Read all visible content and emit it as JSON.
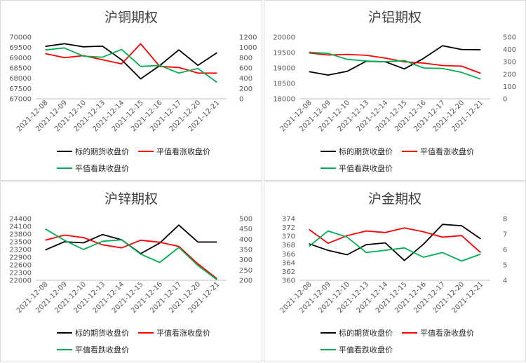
{
  "colors": {
    "futures": "#000000",
    "call": "#ff0000",
    "put": "#00b050",
    "axis": "#bfbfbf",
    "grid": "#e6e6e6"
  },
  "chart_data": [
    {
      "type": "line",
      "title": "沪铜期权",
      "categories": [
        "2021-12-08",
        "2021-12-09",
        "2021-12-10",
        "2021-12-13",
        "2021-12-14",
        "2021-12-15",
        "2021-12-16",
        "2021-12-17",
        "2021-12-20",
        "2021-12-21"
      ],
      "yleft": {
        "range": [
          67000,
          70000
        ],
        "ticks": [
          67000,
          67500,
          68000,
          68500,
          69000,
          69500,
          70000
        ]
      },
      "yright": {
        "range": [
          0,
          1200
        ],
        "ticks": [
          0,
          200,
          400,
          600,
          800,
          1000,
          1200
        ]
      },
      "legend": "bottom",
      "series": [
        {
          "name": "标的期货收盘价",
          "axis": "left",
          "color": "#000000",
          "values": [
            69550,
            69680,
            69530,
            69560,
            68900,
            67970,
            68620,
            69380,
            68630,
            69240
          ]
        },
        {
          "name": "平值看涨收盘价",
          "axis": "right",
          "color": "#ff0000",
          "values": [
            880,
            800,
            840,
            760,
            680,
            1070,
            630,
            610,
            500,
            500
          ]
        },
        {
          "name": "平值看跌收盘价",
          "axis": "right",
          "color": "#00b050",
          "values": [
            950,
            990,
            830,
            810,
            960,
            630,
            650,
            500,
            590,
            320
          ]
        }
      ]
    },
    {
      "type": "line",
      "title": "沪铝期权",
      "categories": [
        "2021-12-08",
        "2021-12-09",
        "2021-12-10",
        "2021-12-13",
        "2021-12-14",
        "2021-12-15",
        "2021-12-16",
        "2021-12-17",
        "2021-12-20",
        "2021-12-21"
      ],
      "yleft": {
        "range": [
          18000,
          20000
        ],
        "ticks": [
          18000,
          18500,
          19000,
          19500,
          20000
        ]
      },
      "yright": {
        "range": [
          0,
          500
        ],
        "ticks": [
          0,
          100,
          200,
          300,
          400,
          500
        ]
      },
      "legend": "bottom",
      "series": [
        {
          "name": "标的期货收盘价",
          "axis": "left",
          "color": "#000000",
          "values": [
            18880,
            18770,
            18890,
            19220,
            19200,
            18970,
            19310,
            19720,
            19600,
            19590
          ]
        },
        {
          "name": "平值看涨收盘价",
          "axis": "right",
          "color": "#ff0000",
          "values": [
            372,
            355,
            360,
            353,
            330,
            300,
            290,
            270,
            265,
            207
          ]
        },
        {
          "name": "平值看跌收盘价",
          "axis": "right",
          "color": "#00b050",
          "values": [
            378,
            368,
            320,
            307,
            300,
            310,
            250,
            246,
            214,
            160
          ]
        }
      ]
    },
    {
      "type": "line",
      "title": "沪锌期权",
      "categories": [
        "2021-12-08",
        "2021-12-09",
        "2021-12-10",
        "2021-12-13",
        "2021-12-14",
        "2021-12-15",
        "2021-12-16",
        "2021-12-17",
        "2021-12-20",
        "2021-12-21"
      ],
      "yleft": {
        "range": [
          22000,
          24400
        ],
        "ticks": [
          22000,
          22300,
          22600,
          22900,
          23200,
          23500,
          23800,
          24100,
          24400
        ]
      },
      "yright": {
        "range": [
          200,
          500
        ],
        "ticks": [
          200,
          250,
          300,
          350,
          400,
          450,
          500
        ]
      },
      "legend": "bottom",
      "series": [
        {
          "name": "标的期货收盘价",
          "axis": "left",
          "color": "#000000",
          "values": [
            23180,
            23500,
            23460,
            23780,
            23580,
            23040,
            23450,
            24150,
            23490,
            23490
          ]
        },
        {
          "name": "平值看涨收盘价",
          "axis": "right",
          "color": "#ff0000",
          "values": [
            395,
            420,
            408,
            373,
            358,
            395,
            385,
            365,
            280,
            208
          ]
        },
        {
          "name": "平值看跌收盘价",
          "axis": "right",
          "color": "#00b050",
          "values": [
            450,
            395,
            350,
            390,
            397,
            327,
            287,
            360,
            272,
            203
          ]
        }
      ]
    },
    {
      "type": "line",
      "title": "沪金期权",
      "categories": [
        "2021-12-08",
        "2021-12-09",
        "2021-12-10",
        "2021-12-13",
        "2021-12-14",
        "2021-12-15",
        "2021-12-16",
        "2021-12-17",
        "2021-12-20",
        "2021-12-21"
      ],
      "yleft": {
        "range": [
          360,
          374
        ],
        "ticks": [
          360,
          362,
          364,
          366,
          368,
          370,
          372,
          374
        ]
      },
      "yright": {
        "range": [
          4,
          8
        ],
        "ticks": [
          4,
          5,
          6,
          7,
          8
        ]
      },
      "legend": "bottom",
      "series": [
        {
          "name": "标的期货收盘价",
          "axis": "left",
          "color": "#000000",
          "values": [
            368.3,
            366.8,
            365.8,
            368.1,
            368.5,
            364.5,
            368.2,
            372.7,
            372.4,
            369.4
          ]
        },
        {
          "name": "平值看涨收盘价",
          "axis": "right",
          "color": "#ff0000",
          "values": [
            7.3,
            6.4,
            6.9,
            7.2,
            7.1,
            7.4,
            7.15,
            6.8,
            6.9,
            5.8
          ]
        },
        {
          "name": "平值看跌收盘价",
          "axis": "right",
          "color": "#00b050",
          "values": [
            6.2,
            7.2,
            6.8,
            5.8,
            5.95,
            6.1,
            5.5,
            5.8,
            5.25,
            5.7
          ]
        }
      ]
    }
  ]
}
